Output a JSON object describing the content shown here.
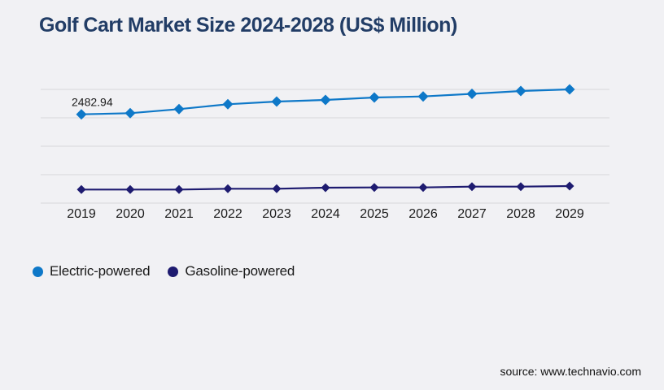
{
  "page": {
    "background_color": "#f1f1f4"
  },
  "header": {
    "title": "Golf Cart Market Size 2024-2028 (US$ Million)",
    "title_color": "#223d66"
  },
  "chart_data": {
    "type": "line",
    "title": "Golf Cart Market Size 2024-2028 (US$ Million)",
    "categories": [
      "2019",
      "2020",
      "2021",
      "2022",
      "2023",
      "2024",
      "2025",
      "2026",
      "2027",
      "2028",
      "2029"
    ],
    "series": [
      {
        "name": "Electric-powered",
        "color": "#0e78c8",
        "marker": "diamond",
        "values": [
          2482.94,
          2514,
          2628,
          2764,
          2839,
          2885,
          2953,
          2982,
          3055,
          3135,
          3180
        ]
      },
      {
        "name": "Gasoline-powered",
        "color": "#1e1b70",
        "marker": "diamond",
        "values": [
          379,
          379,
          379,
          402,
          402,
          432,
          438,
          438,
          461,
          461,
          477
        ]
      }
    ],
    "annotations": [
      {
        "text": "2482.94",
        "series_index": 0,
        "category_index": 0
      }
    ],
    "xlabel": "",
    "ylabel": "",
    "ylim": [
      0,
      3180
    ],
    "gridline_count": 5,
    "grid": "horizontal-only",
    "y_axis_labels_visible": false,
    "legend_position": "bottom-left",
    "grid_color": "#d8d8da",
    "tick_label_color": "#1a1a1a",
    "annotation_color": "#1a1a1a"
  },
  "footer": {
    "source": "source: www.technavio.com"
  }
}
